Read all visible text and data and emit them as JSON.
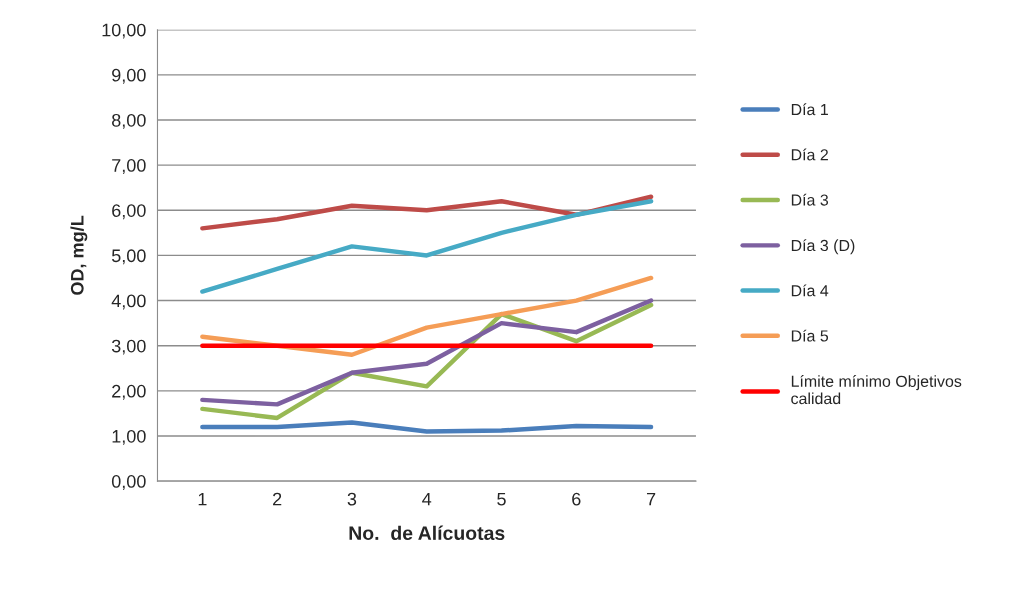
{
  "chart_data": {
    "type": "line",
    "xlabel": "No.  de Alícuotas",
    "ylabel": "OD, mg/L",
    "categories": [
      "1",
      "2",
      "3",
      "4",
      "5",
      "6",
      "7"
    ],
    "series": [
      {
        "name": "Día 1",
        "color": "#4a7ebb",
        "values": [
          1.2,
          1.2,
          1.3,
          1.1,
          1.12,
          1.22,
          1.2
        ]
      },
      {
        "name": "Día 2",
        "color": "#be4b48",
        "values": [
          5.6,
          5.8,
          6.1,
          6.0,
          6.2,
          5.9,
          6.3
        ]
      },
      {
        "name": "Día 3",
        "color": "#98b954",
        "values": [
          1.6,
          1.4,
          2.4,
          2.1,
          3.7,
          3.1,
          3.9
        ]
      },
      {
        "name": "Día 3 (D)",
        "color": "#7d60a0",
        "values": [
          1.8,
          1.7,
          2.4,
          2.6,
          3.5,
          3.3,
          4.0
        ]
      },
      {
        "name": "Día 4",
        "color": "#46aac5",
        "values": [
          4.2,
          4.7,
          5.2,
          5.0,
          5.5,
          5.9,
          6.2
        ]
      },
      {
        "name": "Día 5",
        "color": "#f59d56",
        "values": [
          3.2,
          3.0,
          2.8,
          3.4,
          3.7,
          4.0,
          4.5
        ]
      },
      {
        "name": "Límite mínimo Objetivos\ncalidad",
        "color": "#ff0000",
        "values": [
          3.0,
          3.0,
          3.0,
          3.0,
          3.0,
          3.0,
          3.0
        ]
      }
    ],
    "ylim": [
      0,
      10
    ],
    "yticks": [
      {
        "value": 0,
        "label": "0,00"
      },
      {
        "value": 1,
        "label": "1,00"
      },
      {
        "value": 2,
        "label": "2,00"
      },
      {
        "value": 3,
        "label": "3,00"
      },
      {
        "value": 4,
        "label": "4,00"
      },
      {
        "value": 5,
        "label": "5,00"
      },
      {
        "value": 6,
        "label": "6,00"
      },
      {
        "value": 7,
        "label": "7,00"
      },
      {
        "value": 8,
        "label": "8,00"
      },
      {
        "value": 9,
        "label": "9,00"
      },
      {
        "value": 10,
        "label": "10,00"
      }
    ],
    "grid": "y",
    "legend": "right",
    "marker": "none",
    "line_style": "solid"
  }
}
